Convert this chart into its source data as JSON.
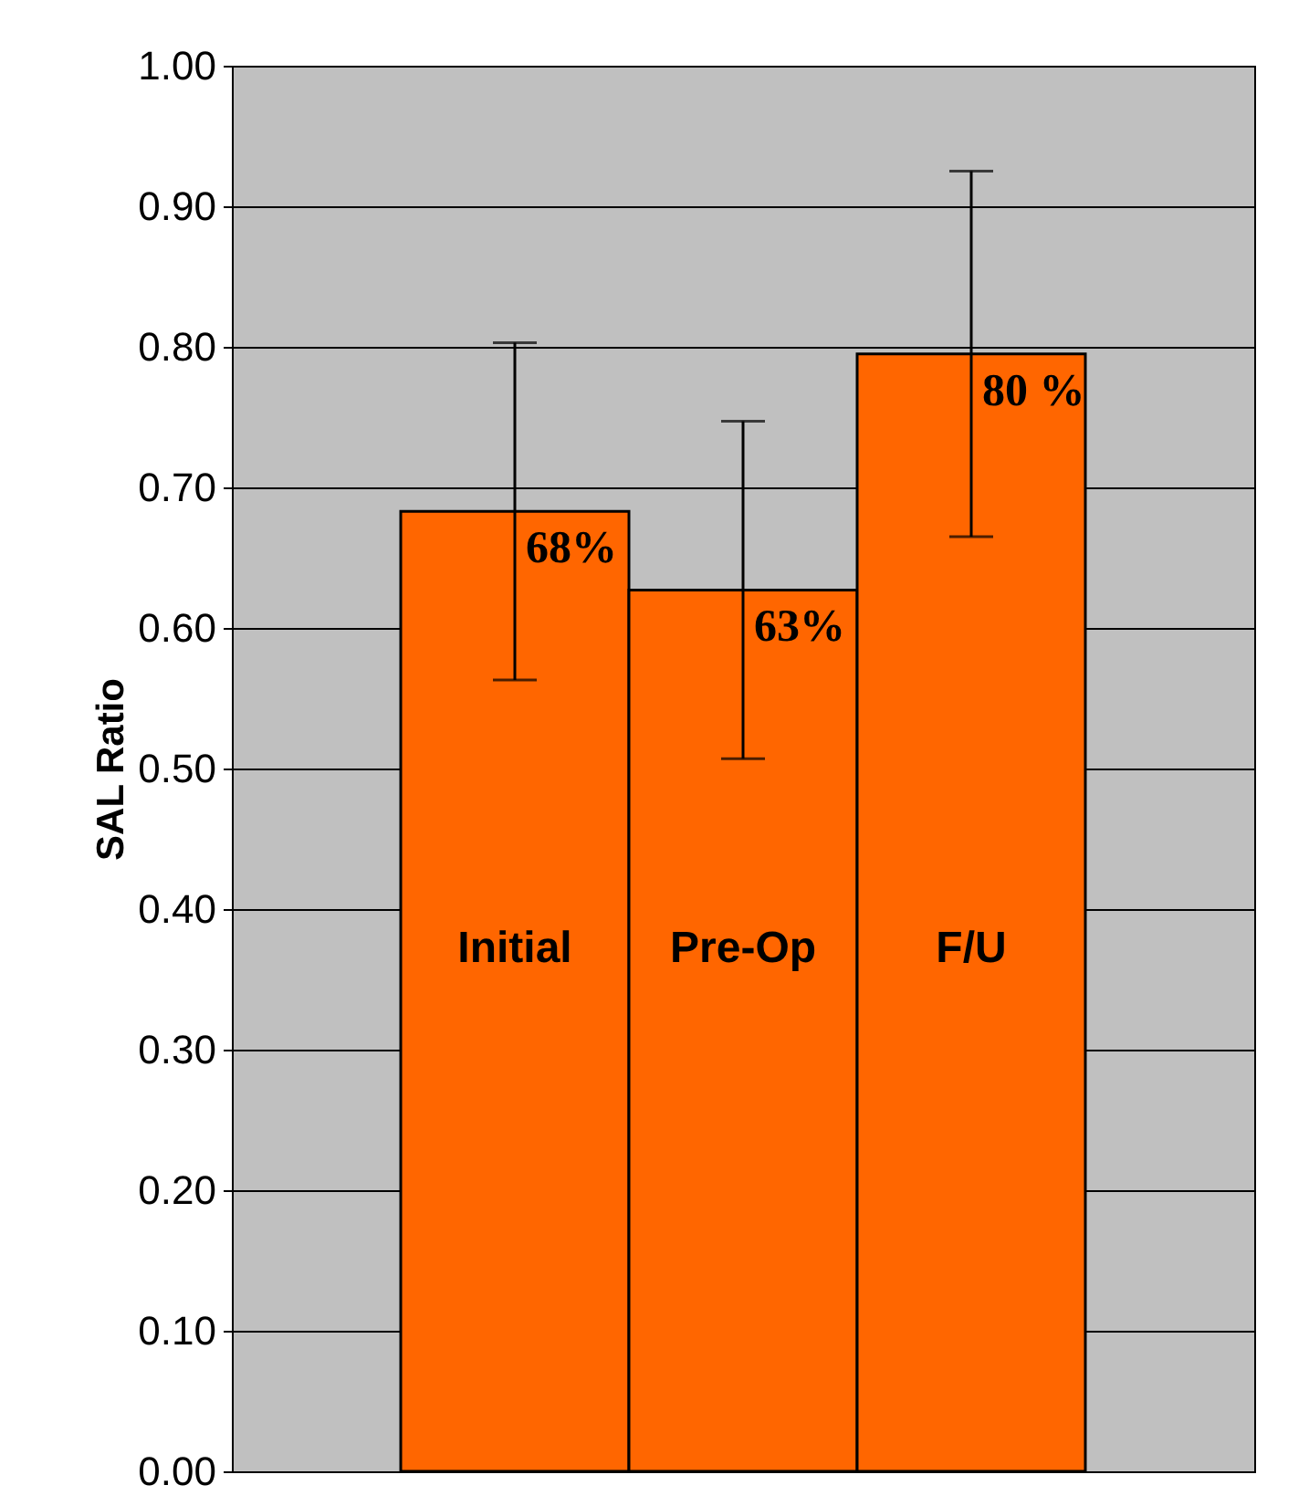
{
  "chart_data": {
    "type": "bar",
    "ylabel": "SAL Ratio",
    "categories": [
      "Initial",
      "Pre-Op",
      "F/U"
    ],
    "values": [
      0.683,
      0.627,
      0.795
    ],
    "errors": [
      0.12,
      0.12,
      0.13
    ],
    "value_labels": [
      "68%",
      "63%",
      "80 %"
    ],
    "color": "#ff6600",
    "ylim": [
      0,
      1
    ],
    "yticks": [
      {
        "value": 0,
        "label": "0.00"
      },
      {
        "value": 0.1,
        "label": "0.10"
      },
      {
        "value": 0.2,
        "label": "0.20"
      },
      {
        "value": 0.3,
        "label": "0.30"
      },
      {
        "value": 0.4,
        "label": "0.40"
      },
      {
        "value": 0.5,
        "label": "0.50"
      },
      {
        "value": 0.6,
        "label": "0.60"
      },
      {
        "value": 0.7,
        "label": "0.70"
      },
      {
        "value": 0.8,
        "label": "0.80"
      },
      {
        "value": 0.9,
        "label": "0.90"
      },
      {
        "value": 1,
        "label": "1.00"
      }
    ],
    "grid": "y"
  }
}
